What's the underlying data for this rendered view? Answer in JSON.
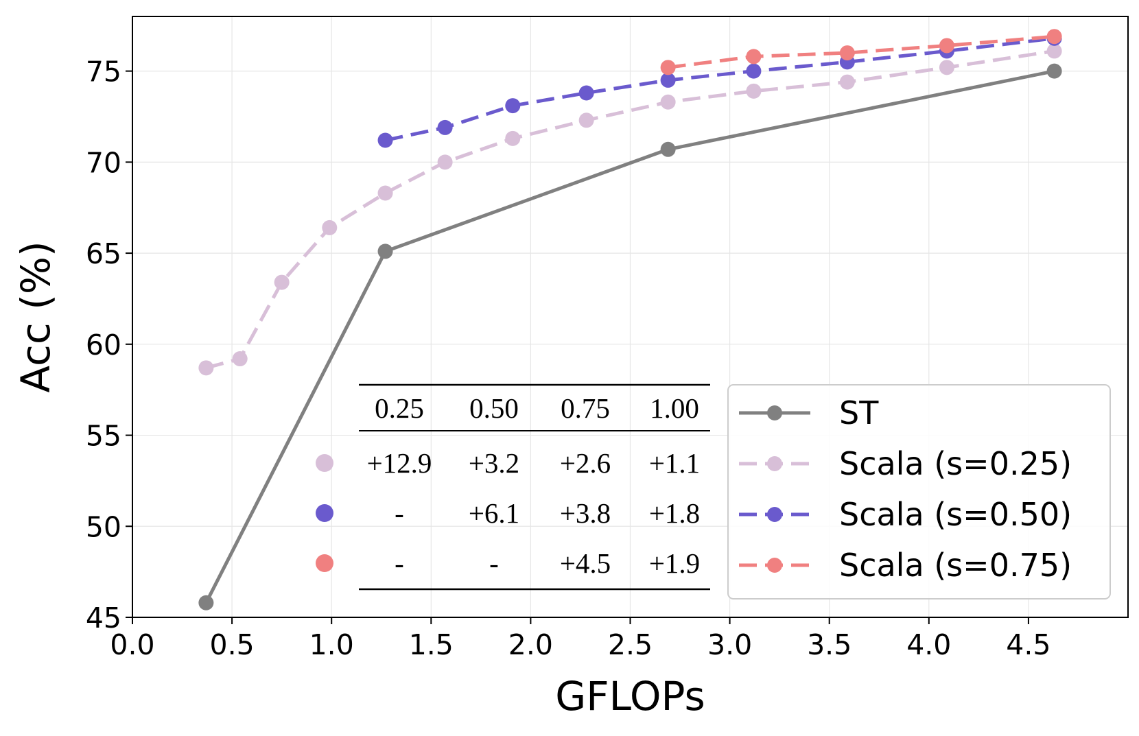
{
  "chart_data": {
    "type": "line",
    "xlabel": "GFLOPs",
    "ylabel": "Acc (%)",
    "xlim": [
      0.0,
      5.0
    ],
    "ylim": [
      45,
      78
    ],
    "xticks": [
      "0.0",
      "0.5",
      "1.0",
      "1.5",
      "2.0",
      "2.5",
      "3.0",
      "3.5",
      "4.0",
      "4.5"
    ],
    "yticks": [
      "45",
      "50",
      "55",
      "60",
      "65",
      "70",
      "75"
    ],
    "grid": true,
    "legend_position": "lower-right",
    "series": [
      {
        "name": "ST",
        "color": "#808080",
        "line_style": "solid",
        "x": [
          0.37,
          1.27,
          2.69,
          4.63
        ],
        "y": [
          45.8,
          65.1,
          70.7,
          75.0
        ]
      },
      {
        "name": "Scala (s=0.25)",
        "color": "#d8bfd8",
        "line_style": "dashed",
        "x": [
          0.37,
          0.54,
          0.75,
          0.99,
          1.27,
          1.57,
          1.91,
          2.28,
          2.69,
          3.12,
          3.59,
          4.09,
          4.63
        ],
        "y": [
          58.7,
          59.2,
          63.4,
          66.4,
          68.3,
          70.0,
          71.3,
          72.3,
          73.3,
          73.9,
          74.4,
          75.2,
          76.1
        ]
      },
      {
        "name": "Scala (s=0.50)",
        "color": "#6a5acd",
        "line_style": "dashed",
        "x": [
          1.27,
          1.57,
          1.91,
          2.28,
          2.69,
          3.12,
          3.59,
          4.09,
          4.63
        ],
        "y": [
          71.2,
          71.9,
          73.1,
          73.8,
          74.5,
          75.0,
          75.5,
          76.1,
          76.8
        ]
      },
      {
        "name": "Scala (s=0.75)",
        "color": "#f08080",
        "line_style": "dashed",
        "x": [
          2.69,
          3.12,
          3.59,
          4.09,
          4.63
        ],
        "y": [
          75.2,
          75.8,
          76.0,
          76.4,
          76.9
        ]
      }
    ],
    "inset_table": {
      "headers": [
        "0.25",
        "0.50",
        "0.75",
        "1.00"
      ],
      "rows": [
        {
          "color": "#d8bfd8",
          "cells": [
            "+12.9",
            "+3.2",
            "+2.6",
            "+1.1"
          ]
        },
        {
          "color": "#6a5acd",
          "cells": [
            "-",
            "+6.1",
            "+3.8",
            "+1.8"
          ]
        },
        {
          "color": "#f08080",
          "cells": [
            "-",
            "-",
            "+4.5",
            "+1.9"
          ]
        }
      ]
    }
  }
}
